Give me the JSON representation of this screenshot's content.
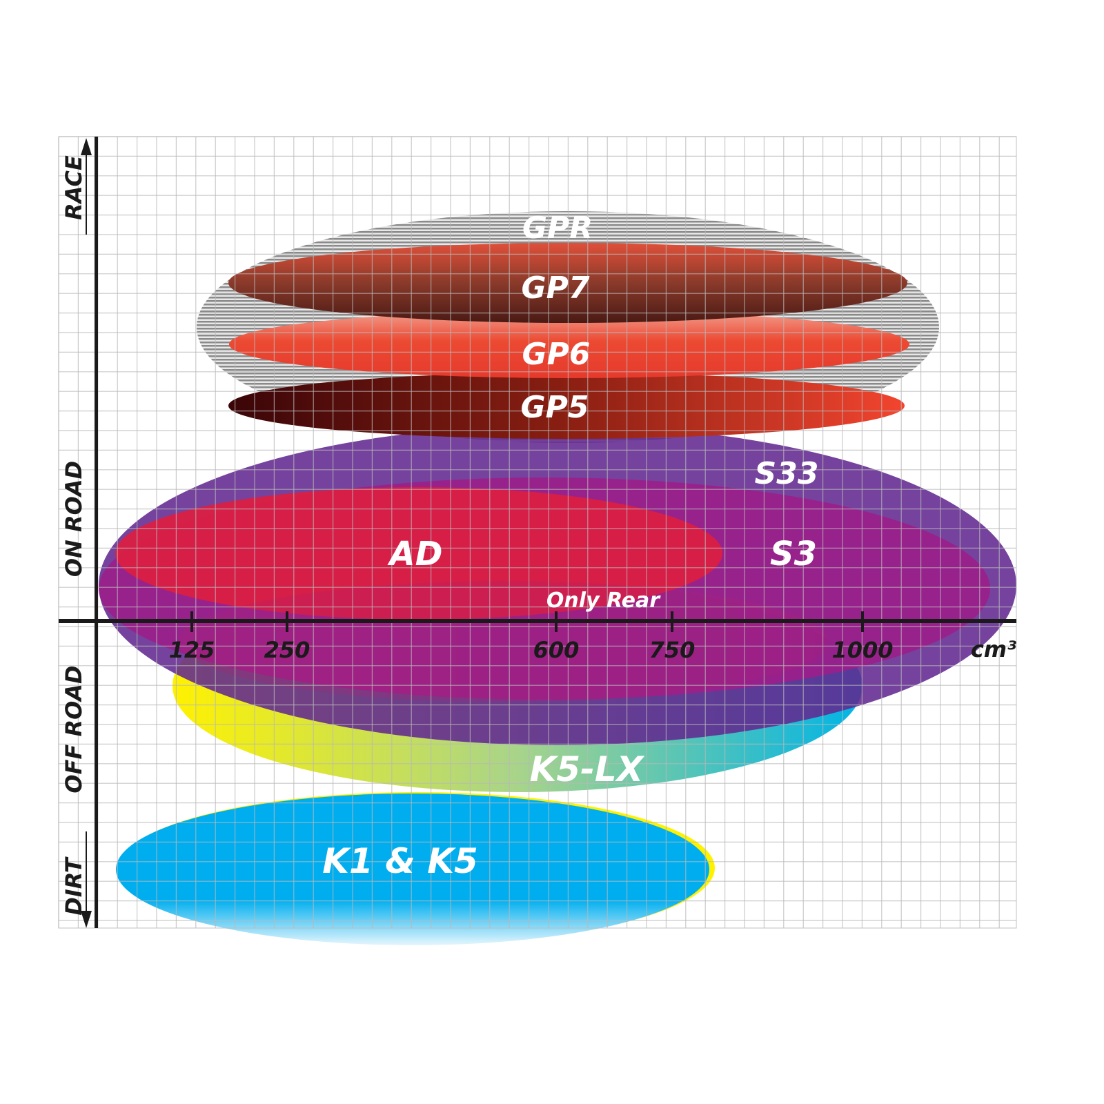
{
  "axes": {
    "y_labels": {
      "top": "RACE",
      "upper_middle": "ON ROAD",
      "lower_middle": "OFF ROAD",
      "bottom": "DIRT"
    },
    "x_unit": "cm³",
    "x_ticks": [
      "125",
      "250",
      "600",
      "750",
      "1000"
    ]
  },
  "products": [
    {
      "id": "gpr",
      "label": "GPR",
      "color": "#9a9a9a"
    },
    {
      "id": "gp7",
      "label": "GP7",
      "color": "#7a2a1e"
    },
    {
      "id": "gp6",
      "label": "GP6",
      "color": "#ec4330"
    },
    {
      "id": "gp5",
      "label": "GP5",
      "color": "#6a0d10"
    },
    {
      "id": "s33",
      "label": "S33",
      "color": "#62298f"
    },
    {
      "id": "s3",
      "label": "S3",
      "color": "#9c1f8b"
    },
    {
      "id": "ad",
      "label": "AD",
      "color": "#da1f43"
    },
    {
      "id": "k5lx",
      "label": "K5-LX",
      "color": "#00b4e0"
    },
    {
      "id": "k1k5",
      "label": "K1 & K5",
      "color": "#00aeef"
    }
  ],
  "notes": {
    "only_rear": "Only Rear"
  }
}
